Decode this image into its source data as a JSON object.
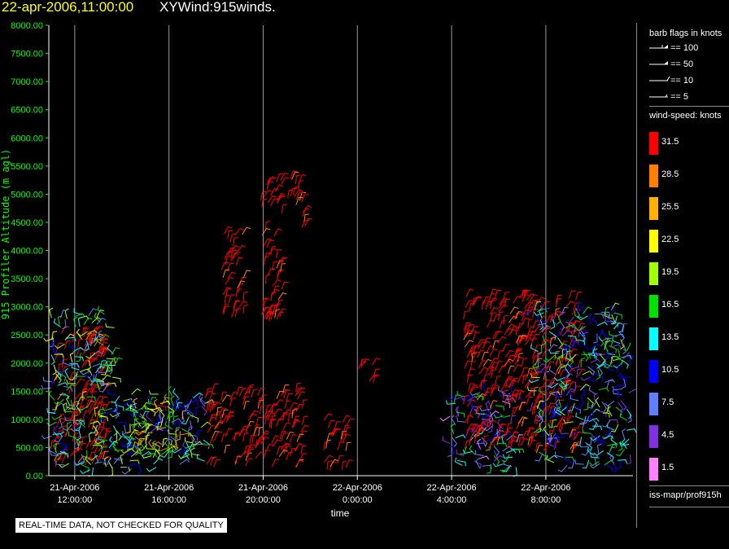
{
  "header": {
    "date_label": "22-apr-2006,11:00:00",
    "title": "XYWind:915winds."
  },
  "chart_data": {
    "type": "scatter",
    "ylabel": "915 Profiler Altitude (m agl)",
    "xlabel": "time",
    "ylim": [
      0,
      8000
    ],
    "y_ticks": [
      "0.00",
      "500.00",
      "1000.00",
      "1500.00",
      "2000.00",
      "2500.00",
      "3000.00",
      "3500.00",
      "4000.00",
      "4500.00",
      "5000.00",
      "5500.00",
      "6000.00",
      "6500.00",
      "7000.00",
      "7500.00",
      "8000.00"
    ],
    "x_ticks": [
      {
        "date": "21-Apr-2006",
        "time": "12:00:00"
      },
      {
        "date": "21-Apr-2006",
        "time": "16:00:00"
      },
      {
        "date": "21-Apr-2006",
        "time": "20:00:00"
      },
      {
        "date": "22-Apr-2006",
        "time": "0:00:00"
      },
      {
        "date": "22-Apr-2006",
        "time": "4:00:00"
      },
      {
        "date": "22-Apr-2006",
        "time": "8:00:00"
      }
    ],
    "x_hours_range": [
      10.9,
      35.7
    ],
    "grid_x": true,
    "series_note": "wind barbs, color = wind speed (knots)",
    "clusters": [
      {
        "x0": 11.0,
        "x1": 13.3,
        "y0": 150,
        "y1": 2600,
        "speed": 31.5
      },
      {
        "x0": 11.0,
        "x1": 13.8,
        "y0": 100,
        "y1": 2900,
        "speed": 14
      },
      {
        "x0": 13.5,
        "x1": 17.6,
        "y0": 100,
        "y1": 1500,
        "speed": 13
      },
      {
        "x0": 14.3,
        "x1": 16.6,
        "y0": 400,
        "y1": 1300,
        "speed": 22.5
      },
      {
        "x0": 17.5,
        "x1": 21.7,
        "y0": 150,
        "y1": 1500,
        "speed": 31.5
      },
      {
        "x0": 18.2,
        "x1": 19.2,
        "y0": 2800,
        "y1": 4300,
        "speed": 31.5
      },
      {
        "x0": 19.9,
        "x1": 20.8,
        "y0": 2700,
        "y1": 5300,
        "speed": 31.5
      },
      {
        "x0": 21.0,
        "x1": 21.8,
        "y0": 4400,
        "y1": 5300,
        "speed": 31.5
      },
      {
        "x0": 22.5,
        "x1": 23.6,
        "y0": 100,
        "y1": 1000,
        "speed": 31.5
      },
      {
        "x0": 24.0,
        "x1": 24.7,
        "y0": 1600,
        "y1": 2000,
        "speed": 31.5
      },
      {
        "x0": 27.9,
        "x1": 30.8,
        "y0": 100,
        "y1": 1500,
        "speed": 10
      },
      {
        "x0": 28.5,
        "x1": 33.4,
        "y0": 400,
        "y1": 3200,
        "speed": 31.5
      },
      {
        "x0": 31.4,
        "x1": 35.6,
        "y0": 150,
        "y1": 3000,
        "speed": 12
      }
    ]
  },
  "legend": {
    "barb_title": "barb flags in knots",
    "barbs": [
      {
        "label": "== 100",
        "kind": "100"
      },
      {
        "label": "== 50",
        "kind": "50"
      },
      {
        "label": "== 10",
        "kind": "10"
      },
      {
        "label": "== 5",
        "kind": "5"
      }
    ],
    "speed_title": "wind-speed: knots",
    "speed_scale": [
      {
        "label": "31.5",
        "color": "#ff0000"
      },
      {
        "label": "28.5",
        "color": "#ff8000"
      },
      {
        "label": "25.5",
        "color": "#ffb000"
      },
      {
        "label": "22.5",
        "color": "#ffff00"
      },
      {
        "label": "19.5",
        "color": "#a0ff00"
      },
      {
        "label": "16.5",
        "color": "#00e000"
      },
      {
        "label": "13.5",
        "color": "#00ffff"
      },
      {
        "label": "10.5",
        "color": "#0000ff"
      },
      {
        "label": "7.5",
        "color": "#6080ff"
      },
      {
        "label": "4.5",
        "color": "#8030e0"
      },
      {
        "label": "1.5",
        "color": "#ff80ff"
      }
    ],
    "source_label": "iss-mapr/prof915h"
  },
  "footer": {
    "notice": "REAL-TIME DATA, NOT CHECKED FOR QUALITY"
  }
}
